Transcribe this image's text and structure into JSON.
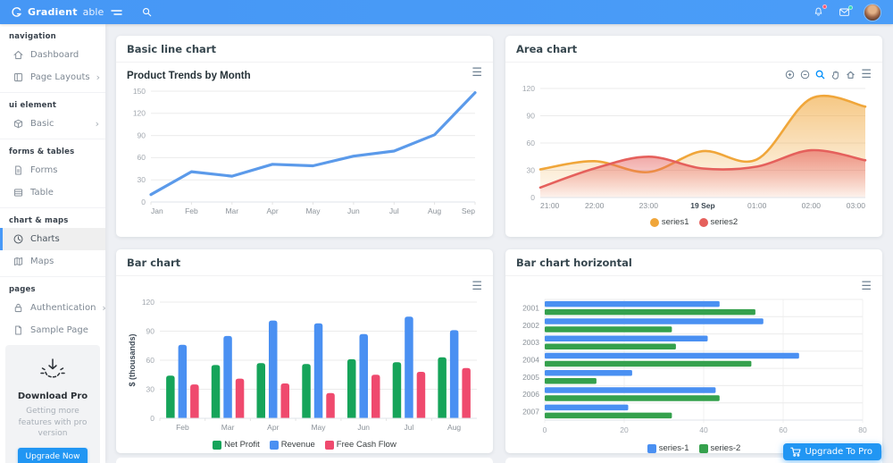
{
  "navbar": {
    "brand_bold": "Gradient",
    "brand_light": "able",
    "notification_badge_color": "#ff5370",
    "message_badge_color": "#2ed8b6"
  },
  "sidebar": {
    "sections": [
      {
        "title": "navigation",
        "items": [
          {
            "label": "Dashboard",
            "icon": "home"
          },
          {
            "label": "Page Layouts",
            "icon": "layout",
            "has_submenu": true
          }
        ]
      },
      {
        "title": "ui element",
        "items": [
          {
            "label": "Basic",
            "icon": "box",
            "has_submenu": true
          }
        ]
      },
      {
        "title": "forms & tables",
        "items": [
          {
            "label": "Forms",
            "icon": "file-text"
          },
          {
            "label": "Table",
            "icon": "table"
          }
        ]
      },
      {
        "title": "chart & maps",
        "items": [
          {
            "label": "Charts",
            "icon": "pie-chart",
            "active": true
          },
          {
            "label": "Maps",
            "icon": "map"
          }
        ]
      },
      {
        "title": "pages",
        "items": [
          {
            "label": "Authentication",
            "icon": "lock",
            "has_submenu": true
          },
          {
            "label": "Sample Page",
            "icon": "file"
          }
        ]
      }
    ],
    "promo": {
      "title": "Download Pro",
      "text": "Getting more features with pro version",
      "button_label": "Upgrade Now"
    }
  },
  "cards": {
    "line": {
      "header": "Basic line chart",
      "chart_title": "Product Trends by Month"
    },
    "area": {
      "header": "Area chart",
      "toolbar_icons": [
        "zoom-in",
        "zoom-out",
        "selection-zoom",
        "pan",
        "reset-home",
        "menu"
      ]
    },
    "bar": {
      "header": "Bar chart"
    },
    "hbar": {
      "header": "Bar chart horizontal"
    }
  },
  "floating_button": {
    "label": "Upgrade To Pro"
  },
  "chart_data": [
    {
      "id": "line",
      "type": "line",
      "title": "Product Trends by Month",
      "categories": [
        "Jan",
        "Feb",
        "Mar",
        "Apr",
        "May",
        "Jun",
        "Jul",
        "Aug",
        "Sep"
      ],
      "series": [
        {
          "name": "Trend",
          "values": [
            10,
            41,
            35,
            51,
            49,
            62,
            69,
            91,
            148
          ],
          "color": "#5b9aea"
        }
      ],
      "ylim": [
        0,
        150
      ],
      "yticks": [
        0,
        30,
        60,
        90,
        120,
        150
      ],
      "grid": true,
      "legend_position": "none"
    },
    {
      "id": "area",
      "type": "area",
      "categories": [
        "21:00",
        "22:00",
        "23:00",
        "19 Sep",
        "01:00",
        "02:00",
        "03:00"
      ],
      "bold_category": "19 Sep",
      "series": [
        {
          "name": "series1",
          "values": [
            31,
            40,
            28,
            51,
            42,
            109,
            100
          ],
          "color": "#f0a63a"
        },
        {
          "name": "series2",
          "values": [
            11,
            32,
            45,
            32,
            34,
            52,
            41
          ],
          "color": "#e5605c"
        }
      ],
      "ylim": [
        0,
        120
      ],
      "yticks": [
        0,
        30,
        60,
        90,
        120
      ],
      "grid": true,
      "legend_position": "bottom"
    },
    {
      "id": "bar",
      "type": "bar",
      "orientation": "vertical",
      "ylabel": "$ (thousands)",
      "categories": [
        "Feb",
        "Mar",
        "Apr",
        "May",
        "Jun",
        "Jul",
        "Aug"
      ],
      "series": [
        {
          "name": "Net Profit",
          "values": [
            44,
            55,
            57,
            56,
            61,
            58,
            63
          ],
          "color": "#16a45a"
        },
        {
          "name": "Revenue",
          "values": [
            76,
            85,
            101,
            98,
            87,
            105,
            91
          ],
          "color": "#4a90f2"
        },
        {
          "name": "Free Cash Flow",
          "values": [
            35,
            41,
            36,
            26,
            45,
            48,
            52
          ],
          "color": "#ef4a6e"
        }
      ],
      "ylim": [
        0,
        120
      ],
      "yticks": [
        0,
        30,
        60,
        90,
        120
      ],
      "grid": true,
      "legend_position": "bottom"
    },
    {
      "id": "hbar",
      "type": "bar",
      "orientation": "horizontal",
      "categories": [
        "2001",
        "2002",
        "2003",
        "2004",
        "2005",
        "2006",
        "2007"
      ],
      "series": [
        {
          "name": "series-1",
          "values": [
            44,
            55,
            41,
            64,
            22,
            43,
            21
          ],
          "color": "#4a90f2"
        },
        {
          "name": "series-2",
          "values": [
            53,
            32,
            33,
            52,
            13,
            44,
            32
          ],
          "color": "#35a14d"
        }
      ],
      "xlim": [
        0,
        80
      ],
      "xticks": [
        0,
        20,
        40,
        60,
        80
      ],
      "grid": true,
      "legend_position": "bottom"
    }
  ]
}
